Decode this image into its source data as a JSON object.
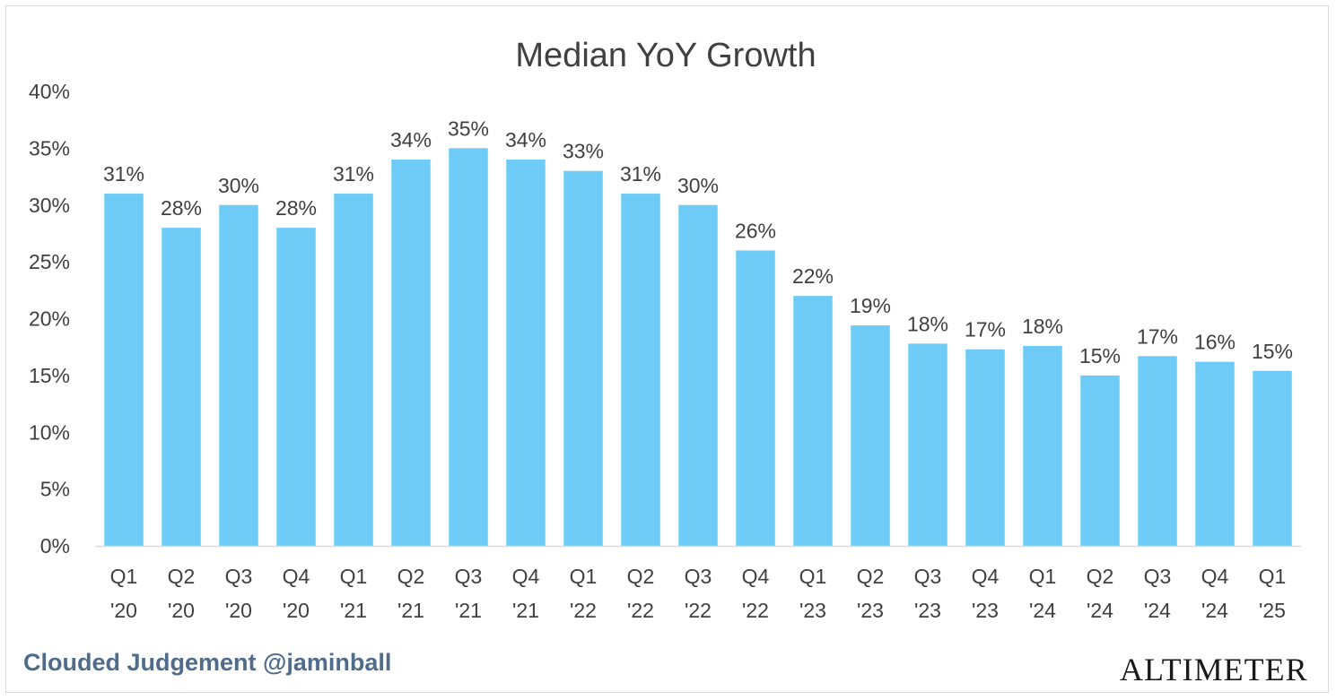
{
  "colors": {
    "bar": "#6ecbf5",
    "text": "#404040",
    "axis_line": "#d9d9d9",
    "footer_left": "#4f6d8a",
    "footer_right": "#1a1a1a"
  },
  "footer": {
    "left_text": "Clouded Judgement @jaminball",
    "right_text": "ALTIMETER"
  },
  "chart_data": {
    "type": "bar",
    "title": "Median YoY Growth",
    "xlabel": "",
    "ylabel": "",
    "ylim": [
      0,
      0.4
    ],
    "y_ticks": [
      0,
      0.05,
      0.1,
      0.15,
      0.2,
      0.25,
      0.3,
      0.35,
      0.4
    ],
    "y_tick_labels": [
      "0%",
      "5%",
      "10%",
      "15%",
      "20%",
      "25%",
      "30%",
      "35%",
      "40%"
    ],
    "grid": false,
    "legend": "none",
    "categories": [
      [
        "Q1",
        "'20"
      ],
      [
        "Q2",
        "'20"
      ],
      [
        "Q3",
        "'20"
      ],
      [
        "Q4",
        "'20"
      ],
      [
        "Q1",
        "'21"
      ],
      [
        "Q2",
        "'21"
      ],
      [
        "Q3",
        "'21"
      ],
      [
        "Q4",
        "'21"
      ],
      [
        "Q1",
        "'22"
      ],
      [
        "Q2",
        "'22"
      ],
      [
        "Q3",
        "'22"
      ],
      [
        "Q4",
        "'22"
      ],
      [
        "Q1",
        "'23"
      ],
      [
        "Q2",
        "'23"
      ],
      [
        "Q3",
        "'23"
      ],
      [
        "Q4",
        "'23"
      ],
      [
        "Q1",
        "'24"
      ],
      [
        "Q2",
        "'24"
      ],
      [
        "Q3",
        "'24"
      ],
      [
        "Q4",
        "'24"
      ],
      [
        "Q1",
        "'25"
      ]
    ],
    "values": [
      0.31,
      0.28,
      0.3,
      0.28,
      0.31,
      0.34,
      0.35,
      0.34,
      0.33,
      0.31,
      0.3,
      0.26,
      0.22,
      0.194,
      0.178,
      0.173,
      0.176,
      0.15,
      0.167,
      0.162,
      0.154
    ],
    "data_labels": [
      "31%",
      "28%",
      "30%",
      "28%",
      "31%",
      "34%",
      "35%",
      "34%",
      "33%",
      "31%",
      "30%",
      "26%",
      "22%",
      "19%",
      "18%",
      "17%",
      "18%",
      "15%",
      "17%",
      "16%",
      "15%"
    ]
  }
}
